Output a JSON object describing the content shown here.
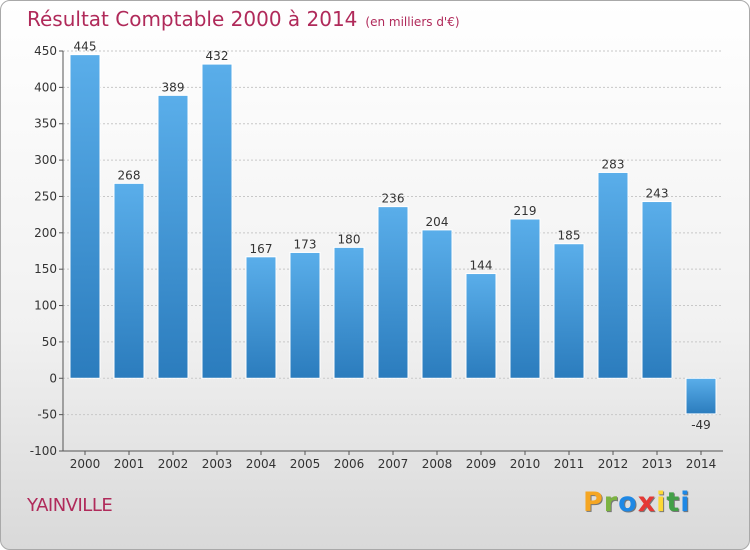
{
  "title": "Résultat Comptable 2000 à 2014",
  "unit": "(en milliers d'€)",
  "commune": "YAINVILLE",
  "brand": {
    "letters": [
      "P",
      "r",
      "o",
      "x",
      "i",
      "t",
      "i"
    ],
    "colors": [
      "#f5a623",
      "#7cb342",
      "#1e88e5",
      "#e53935",
      "#fdd835",
      "#43a047",
      "#1e88e5"
    ]
  },
  "colors": {
    "bar_top": "#5aaeea",
    "bar_bottom": "#2b7cbd",
    "title": "#b02a5a"
  },
  "chart_data": {
    "type": "bar",
    "categories": [
      "2000",
      "2001",
      "2002",
      "2003",
      "2004",
      "2005",
      "2006",
      "2007",
      "2008",
      "2009",
      "2010",
      "2011",
      "2012",
      "2013",
      "2014"
    ],
    "values": [
      445,
      268,
      389,
      432,
      167,
      173,
      180,
      236,
      204,
      144,
      219,
      185,
      283,
      243,
      -49
    ],
    "ylim": [
      -100,
      450
    ],
    "yticks": [
      -100,
      -50,
      0,
      50,
      100,
      150,
      200,
      250,
      300,
      350,
      400,
      450
    ],
    "grid": true
  }
}
